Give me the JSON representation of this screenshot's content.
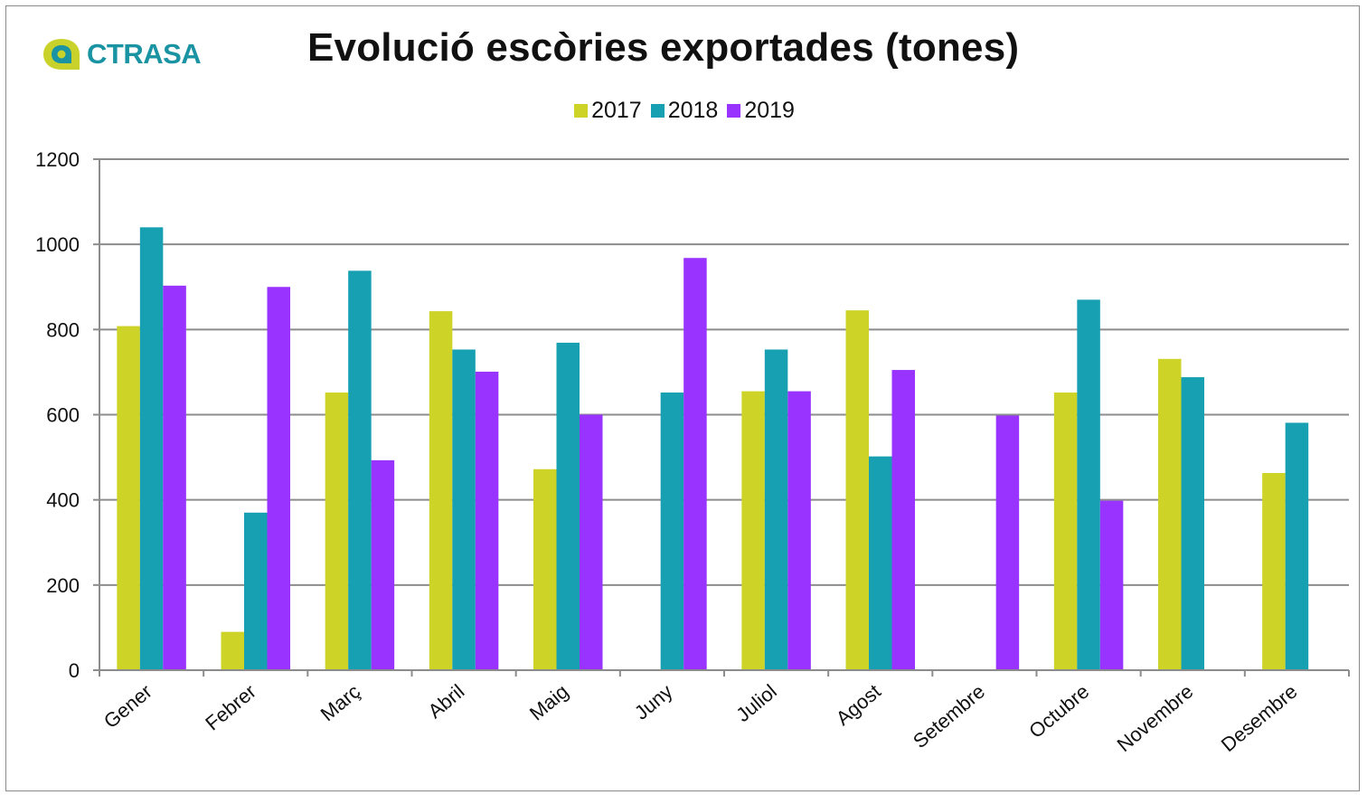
{
  "logo": {
    "name": "ctrasa-logo-icon",
    "text": "CTRASA",
    "colors": {
      "yellow": "#c8d22b",
      "teal": "#1a93a3"
    }
  },
  "chart_data": {
    "type": "bar",
    "title": "Evolució escòries exportades (tones)",
    "xlabel": "",
    "ylabel": "",
    "ylim": [
      0,
      1200
    ],
    "yticks": [
      "0",
      "200",
      "400",
      "600",
      "800",
      "1000",
      "1200"
    ],
    "grid": true,
    "legend_position": "top",
    "categories": [
      "Gener",
      "Febrer",
      "Març",
      "Abril",
      "Maig",
      "Juny",
      "Juliol",
      "Agost",
      "Setembre",
      "Octubre",
      "Novembre",
      "Desembre"
    ],
    "series": [
      {
        "name": "2017",
        "color": "#cdd327",
        "values": [
          808,
          90,
          652,
          843,
          472,
          null,
          655,
          845,
          null,
          652,
          731,
          463
        ]
      },
      {
        "name": "2018",
        "color": "#16a0b2",
        "values": [
          1040,
          370,
          938,
          753,
          769,
          652,
          753,
          502,
          null,
          870,
          688,
          581
        ]
      },
      {
        "name": "2019",
        "color": "#9933ff",
        "values": [
          903,
          900,
          493,
          701,
          600,
          968,
          655,
          705,
          598,
          398,
          null,
          null
        ]
      }
    ]
  }
}
